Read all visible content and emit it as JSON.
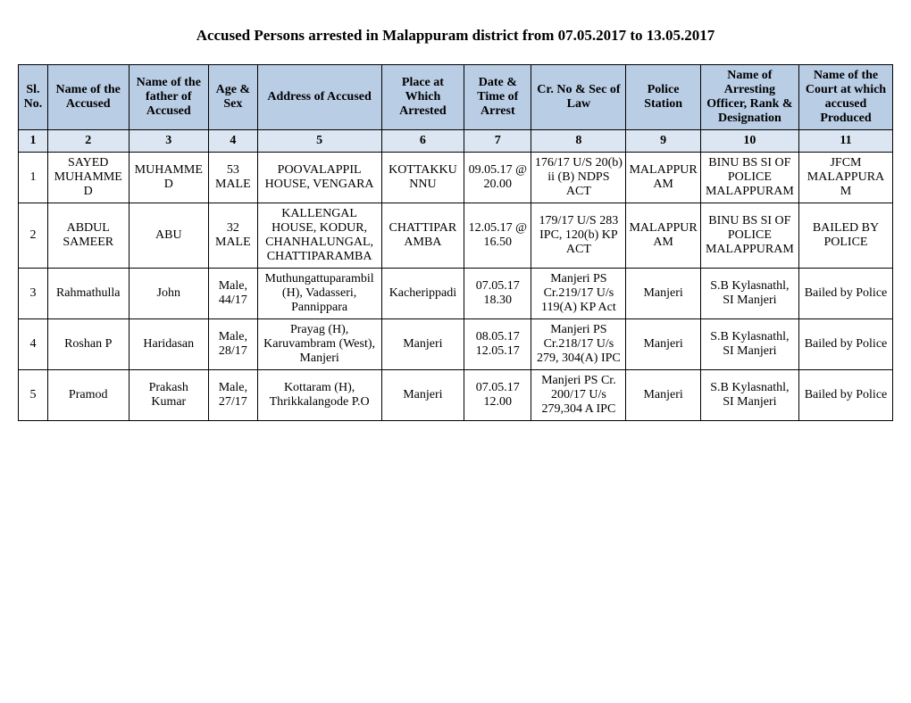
{
  "title": "Accused Persons arrested in  Malappuram  district from    07.05.2017 to 13.05.2017",
  "colors": {
    "header_bg": "#b9cde5",
    "numrow_bg": "#dce6f2",
    "border": "#000000",
    "background": "#ffffff",
    "text": "#000000"
  },
  "columns": [
    {
      "key": "sl",
      "label": "Sl. No.",
      "num": "1",
      "widthPct": 3.2
    },
    {
      "key": "name",
      "label": "Name of the Accused",
      "num": "2",
      "widthPct": 8.8
    },
    {
      "key": "father",
      "label": "Name of the father of Accused",
      "num": "3",
      "widthPct": 8.7
    },
    {
      "key": "age",
      "label": "Age & Sex",
      "num": "4",
      "widthPct": 5.3
    },
    {
      "key": "addr",
      "label": "Address of Accused",
      "num": "5",
      "widthPct": 13.5
    },
    {
      "key": "place",
      "label": "Place at Which Arrested",
      "num": "6",
      "widthPct": 9.0
    },
    {
      "key": "date",
      "label": "Date & Time of Arrest",
      "num": "7",
      "widthPct": 7.3
    },
    {
      "key": "crno",
      "label": "Cr. No & Sec of Law",
      "num": "8",
      "widthPct": 10.3
    },
    {
      "key": "ps",
      "label": "Police Station",
      "num": "9",
      "widthPct": 8.1
    },
    {
      "key": "off",
      "label": "Name of Arresting Officer, Rank & Designation",
      "num": "10",
      "widthPct": 10.7
    },
    {
      "key": "court",
      "label": "Name of the Court at which accused Produced",
      "num": "11",
      "widthPct": 10.2
    }
  ],
  "rows": [
    {
      "sl": "1",
      "name": "SAYED MUHAMMED",
      "father": "MUHAMMED",
      "age": "53 MALE",
      "addr": "POOVALAPPIL HOUSE, VENGARA",
      "place": "KOTTAKKUNNU",
      "date": "09.05.17 @ 20.00",
      "crno": "176/17 U/S 20(b) ii (B) NDPS ACT",
      "ps": "MALAPPURAM",
      "off": "BINU BS SI OF POLICE MALAPPURAM",
      "court": "JFCM MALAPPURAM"
    },
    {
      "sl": "2",
      "name": "ABDUL SAMEER",
      "father": "ABU",
      "age": "32 MALE",
      "addr": "KALLENGAL HOUSE, KODUR, CHANHALUNGAL, CHATTIPARAMBA",
      "place": "CHATTIPARAMBA",
      "date": "12.05.17 @ 16.50",
      "crno": "179/17 U/S 283 IPC, 120(b) KP ACT",
      "ps": "MALAPPURAM",
      "off": "BINU BS SI OF POLICE MALAPPURAM",
      "court": "BAILED BY POLICE"
    },
    {
      "sl": "3",
      "name": "Rahmathulla",
      "father": "John",
      "age": "Male, 44/17",
      "addr": "Muthungattuparambil (H), Vadasseri, Pannippara",
      "place": "Kacherippadi",
      "date": "07.05.17 18.30",
      "crno": "Manjeri PS Cr.219/17 U/s 119(A) KP Act",
      "ps": "Manjeri",
      "off": "S.B Kylasnathl, SI Manjeri",
      "court": "Bailed by Police"
    },
    {
      "sl": "4",
      "name": "Roshan P",
      "father": "Haridasan",
      "age": "Male, 28/17",
      "addr": "Prayag (H), Karuvambram (West), Manjeri",
      "place": "Manjeri",
      "date": "08.05.17 12.05.17",
      "crno": "Manjeri PS Cr.218/17 U/s 279, 304(A) IPC",
      "ps": "Manjeri",
      "off": "S.B Kylasnathl, SI Manjeri",
      "court": "Bailed by Police"
    },
    {
      "sl": "5",
      "name": "Pramod",
      "father": "Prakash Kumar",
      "age": "Male, 27/17",
      "addr": "Kottaram (H), Thrikkalangode P.O",
      "place": "Manjeri",
      "date": "07.05.17 12.00",
      "crno": "Manjeri PS Cr. 200/17 U/s 279,304 A IPC",
      "ps": "Manjeri",
      "off": "S.B Kylasnathl, SI Manjeri",
      "court": "Bailed by Police"
    }
  ]
}
